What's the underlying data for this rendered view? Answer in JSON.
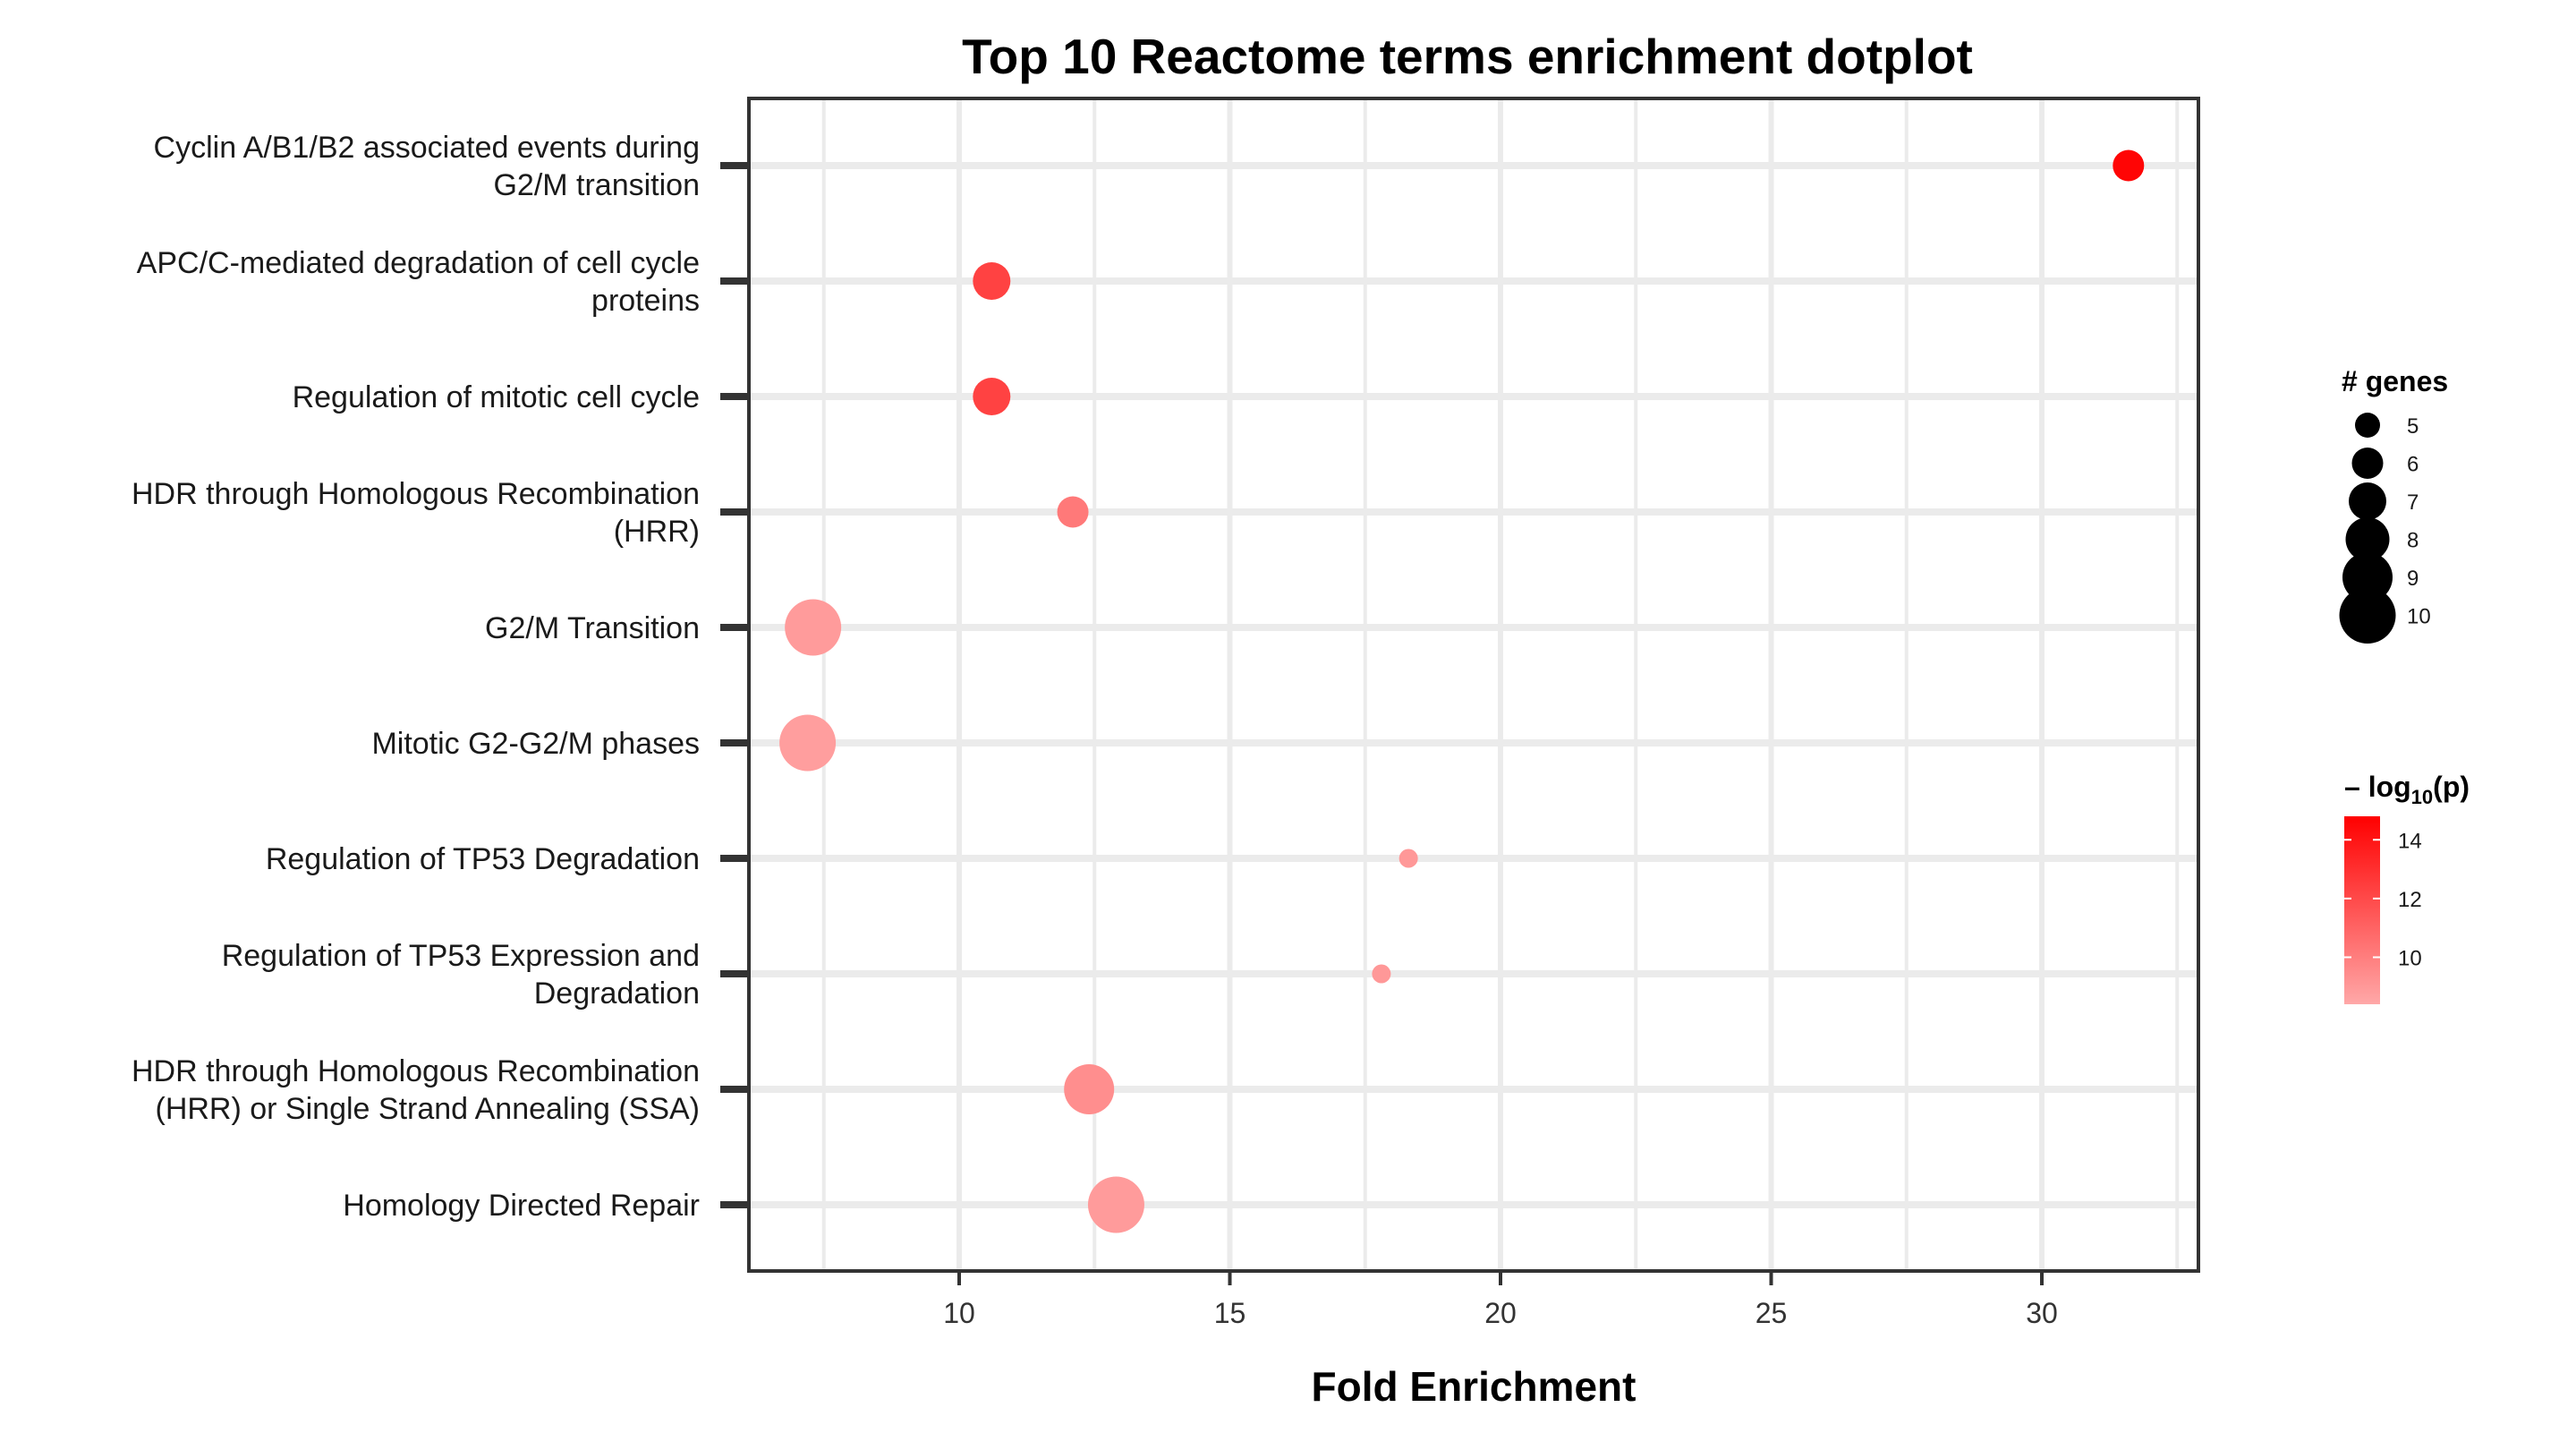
{
  "chart_data": {
    "type": "scatter",
    "title": "Top 10 Reactome terms enrichment dotplot",
    "xlabel": "Fold Enrichment",
    "ylabel": "",
    "xlim": [
      6.1,
      32.8
    ],
    "xticks": [
      10,
      15,
      20,
      25,
      30
    ],
    "grid": true,
    "categories": [
      "Cyclin A/B1/B2 associated events during\nG2/M transition",
      "APC/C-mediated degradation of cell cycle\nproteins",
      "Regulation of mitotic cell cycle",
      "HDR through Homologous Recombination\n(HRR)",
      "G2/M Transition",
      "Mitotic G2-G2/M phases",
      "Regulation of TP53 Degradation",
      "Regulation of TP53 Expression and\nDegradation",
      "HDR through Homologous Recombination\n(HRR) or Single Strand Annealing (SSA)",
      "Homology Directed Repair"
    ],
    "points": [
      {
        "term": "Cyclin A/B1/B2 associated events during G2/M transition",
        "fold_enrichment": 31.6,
        "genes": 6,
        "neg_log10_p": 14.6
      },
      {
        "term": "APC/C-mediated degradation of cell cycle proteins",
        "fold_enrichment": 10.6,
        "genes": 7,
        "neg_log10_p": 12.3
      },
      {
        "term": "Regulation of mitotic cell cycle",
        "fold_enrichment": 10.6,
        "genes": 7,
        "neg_log10_p": 12.3
      },
      {
        "term": "HDR through Homologous Recombination (HRR)",
        "fold_enrichment": 12.1,
        "genes": 6,
        "neg_log10_p": 10.2
      },
      {
        "term": "G2/M Transition",
        "fold_enrichment": 7.3,
        "genes": 10,
        "neg_log10_p": 8.9
      },
      {
        "term": "Mitotic G2-G2/M phases",
        "fold_enrichment": 7.2,
        "genes": 10,
        "neg_log10_p": 8.8
      },
      {
        "term": "Regulation of TP53 Degradation",
        "fold_enrichment": 18.3,
        "genes": 4,
        "neg_log10_p": 9.0
      },
      {
        "term": "Regulation of TP53 Expression and Degradation",
        "fold_enrichment": 17.8,
        "genes": 4,
        "neg_log10_p": 9.0
      },
      {
        "term": "HDR through Homologous Recombination (HRR) or Single Strand Annealing (SSA)",
        "fold_enrichment": 12.4,
        "genes": 9,
        "neg_log10_p": 9.4
      },
      {
        "term": "Homology Directed Repair",
        "fold_enrichment": 12.9,
        "genes": 10,
        "neg_log10_p": 8.9
      }
    ],
    "size_legend": {
      "title": "# genes",
      "values": [
        5,
        6,
        7,
        8,
        9,
        10
      ]
    },
    "color_legend": {
      "title_prefix": "– log",
      "title_sub": "10",
      "title_suffix": "(p)",
      "ticks": [
        10,
        12,
        14
      ],
      "range": [
        8.4,
        14.8
      ],
      "low_color": "#ffa8a8",
      "high_color": "#ff0000"
    },
    "colors": {
      "grid": "#ebebeb",
      "axis": "#333333"
    }
  }
}
